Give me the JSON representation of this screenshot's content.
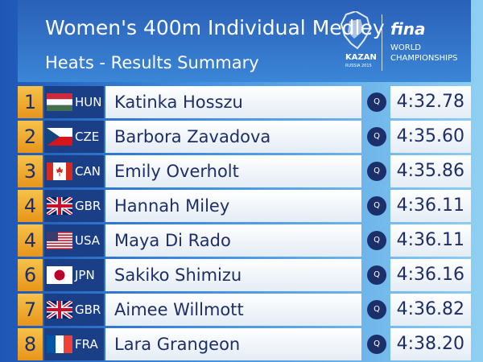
{
  "header": {
    "title": "Women's 400m Individual Medley",
    "subtitle": "Heats - Results Summary",
    "event_logo": {
      "city": "KAZAN",
      "edition": "RUSSIA 2015"
    },
    "federation_logo": {
      "name": "fina",
      "line1": "WORLD",
      "line2": "CHAMPIONSHIPS"
    }
  },
  "table": {
    "rows": [
      [
        "1",
        "HUN",
        "Katinka Hosszu",
        "Q",
        "4:32.78"
      ],
      [
        "2",
        "CZE",
        "Barbora Zavadova",
        "Q",
        "4:35.60"
      ],
      [
        "3",
        "CAN",
        "Emily Overholt",
        "Q",
        "4:35.86"
      ],
      [
        "4",
        "GBR",
        "Hannah Miley",
        "Q",
        "4:36.11"
      ],
      [
        "4",
        "USA",
        "Maya Di Rado",
        "Q",
        "4:36.11"
      ],
      [
        "6",
        "JPN",
        "Sakiko Shimizu",
        "Q",
        "4:36.16"
      ],
      [
        "7",
        "GBR",
        "Aimee Willmott",
        "Q",
        "4:36.82"
      ],
      [
        "8",
        "FRA",
        "Lara Grangeon",
        "Q",
        "4:38.20"
      ]
    ]
  }
}
